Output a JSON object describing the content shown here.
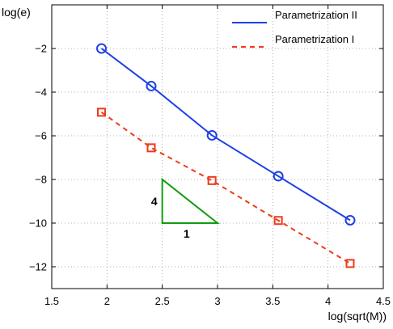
{
  "chart_data": {
    "type": "line",
    "xlabel": "log(sqrt(M))",
    "ylabel": "log(e)",
    "xlim": [
      1.5,
      4.5
    ],
    "ylim": [
      -13,
      0
    ],
    "xticks": [
      1.5,
      2,
      2.5,
      3,
      3.5,
      4,
      4.5
    ],
    "xtick_labels": [
      "1.5",
      "2",
      "2.5",
      "3",
      "3.5",
      "4",
      "4.5"
    ],
    "yticks": [
      -12,
      -10,
      -8,
      -6,
      -4,
      -2
    ],
    "ytick_labels": [
      "−12",
      "−10",
      "−8",
      "−6",
      "−4",
      "−2"
    ],
    "grid": true,
    "legend_position": "top-right",
    "series": [
      {
        "name": "Parametrization II",
        "color": "#1f3fe6",
        "line_style": "solid",
        "marker": "circle",
        "x": [
          1.95,
          2.4,
          2.95,
          3.55,
          4.2
        ],
        "y": [
          -2.0,
          -3.72,
          -5.98,
          -7.85,
          -9.87
        ]
      },
      {
        "name": "Parametrization I",
        "color": "#ef3a1c",
        "line_style": "dashed",
        "marker": "square",
        "x": [
          1.95,
          2.4,
          2.95,
          3.55,
          4.2
        ],
        "y": [
          -4.92,
          -6.55,
          -8.05,
          -9.88,
          -11.85
        ]
      }
    ],
    "slope_triangle": {
      "color": "#139a13",
      "vertices": [
        [
          2.5,
          -8.0
        ],
        [
          2.5,
          -10.0
        ],
        [
          3.0,
          -10.0
        ]
      ],
      "vertical_label": "4",
      "horizontal_label": "1"
    }
  }
}
